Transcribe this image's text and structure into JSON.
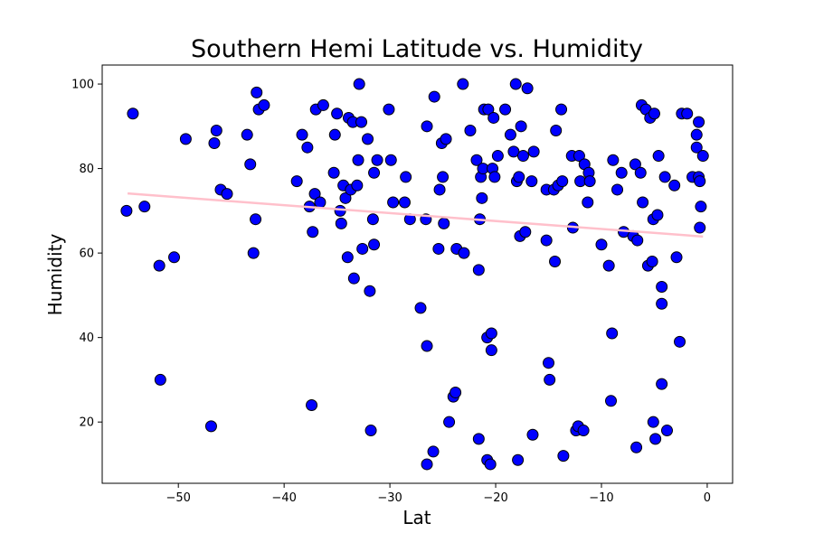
{
  "chart_data": {
    "type": "scatter",
    "title": "Southern Hemi Latitude vs. Humidity",
    "xlabel": "Lat",
    "ylabel": "Humidity",
    "xlim": [
      -57.2,
      2.4
    ],
    "ylim": [
      5.5,
      104.5
    ],
    "xticks": [
      -50,
      -40,
      -30,
      -20,
      -10,
      0
    ],
    "yticks": [
      20,
      40,
      60,
      80,
      100
    ],
    "marker_color": "#0000ff",
    "marker_edge_color": "#000000",
    "regression_color": "#ffc0cb",
    "regression": {
      "x": [
        -54.8,
        -0.4
      ],
      "y": [
        74.1,
        63.9
      ]
    },
    "points": [
      [
        -54.9,
        70
      ],
      [
        -54.3,
        93
      ],
      [
        -53.2,
        71
      ],
      [
        -51.8,
        57
      ],
      [
        -51.7,
        30
      ],
      [
        -50.4,
        59
      ],
      [
        -49.3,
        87
      ],
      [
        -46.9,
        19
      ],
      [
        -46.6,
        86
      ],
      [
        -46.4,
        89
      ],
      [
        -46.0,
        75
      ],
      [
        -45.4,
        74
      ],
      [
        -43.5,
        88
      ],
      [
        -43.2,
        81
      ],
      [
        -42.9,
        60
      ],
      [
        -42.7,
        68
      ],
      [
        -42.6,
        98
      ],
      [
        -42.4,
        94
      ],
      [
        -41.9,
        95
      ],
      [
        -38.8,
        77
      ],
      [
        -38.3,
        88
      ],
      [
        -37.8,
        85
      ],
      [
        -37.6,
        71
      ],
      [
        -37.4,
        24
      ],
      [
        -37.3,
        65
      ],
      [
        -37.1,
        74
      ],
      [
        -37.0,
        94
      ],
      [
        -36.6,
        72
      ],
      [
        -36.3,
        95
      ],
      [
        -35.3,
        79
      ],
      [
        -35.2,
        88
      ],
      [
        -35.0,
        93
      ],
      [
        -34.7,
        70
      ],
      [
        -34.6,
        67
      ],
      [
        -34.4,
        76
      ],
      [
        -34.2,
        73
      ],
      [
        -34.0,
        59
      ],
      [
        -33.9,
        92
      ],
      [
        -33.7,
        75
      ],
      [
        -33.5,
        91
      ],
      [
        -33.4,
        54
      ],
      [
        -33.1,
        76
      ],
      [
        -33.0,
        82
      ],
      [
        -32.9,
        100
      ],
      [
        -32.7,
        91
      ],
      [
        -32.6,
        61
      ],
      [
        -32.1,
        87
      ],
      [
        -31.9,
        51
      ],
      [
        -31.8,
        18
      ],
      [
        -31.6,
        68
      ],
      [
        -31.5,
        62
      ],
      [
        -31.5,
        79
      ],
      [
        -31.2,
        82
      ],
      [
        -30.1,
        94
      ],
      [
        -29.9,
        82
      ],
      [
        -29.7,
        72
      ],
      [
        -28.6,
        72
      ],
      [
        -28.5,
        78
      ],
      [
        -28.1,
        68
      ],
      [
        -27.1,
        47
      ],
      [
        -26.6,
        68
      ],
      [
        -26.5,
        38
      ],
      [
        -26.5,
        90
      ],
      [
        -26.5,
        10
      ],
      [
        -25.9,
        13
      ],
      [
        -25.8,
        97
      ],
      [
        -25.4,
        61
      ],
      [
        -25.3,
        75
      ],
      [
        -25.1,
        86
      ],
      [
        -25.0,
        78
      ],
      [
        -24.9,
        67
      ],
      [
        -24.7,
        87
      ],
      [
        -24.4,
        20
      ],
      [
        -24.0,
        26
      ],
      [
        -23.8,
        27
      ],
      [
        -23.7,
        61
      ],
      [
        -23.1,
        100
      ],
      [
        -23.0,
        60
      ],
      [
        -22.4,
        89
      ],
      [
        -21.8,
        82
      ],
      [
        -21.6,
        16
      ],
      [
        -21.6,
        56
      ],
      [
        -21.5,
        68
      ],
      [
        -21.4,
        78
      ],
      [
        -21.3,
        73
      ],
      [
        -21.2,
        80
      ],
      [
        -21.1,
        94
      ],
      [
        -20.8,
        11
      ],
      [
        -20.8,
        40
      ],
      [
        -20.7,
        94
      ],
      [
        -20.5,
        10
      ],
      [
        -20.4,
        37
      ],
      [
        -20.4,
        41
      ],
      [
        -20.3,
        80
      ],
      [
        -20.2,
        92
      ],
      [
        -20.1,
        78
      ],
      [
        -19.8,
        83
      ],
      [
        -19.1,
        94
      ],
      [
        -18.6,
        88
      ],
      [
        -18.3,
        84
      ],
      [
        -18.1,
        100
      ],
      [
        -18.0,
        77
      ],
      [
        -17.9,
        11
      ],
      [
        -17.8,
        78
      ],
      [
        -17.7,
        64
      ],
      [
        -17.6,
        90
      ],
      [
        -17.4,
        83
      ],
      [
        -17.2,
        65
      ],
      [
        -17.0,
        99
      ],
      [
        -16.6,
        77
      ],
      [
        -16.5,
        17
      ],
      [
        -16.4,
        84
      ],
      [
        -15.2,
        63
      ],
      [
        -15.2,
        75
      ],
      [
        -15.0,
        34
      ],
      [
        -14.9,
        30
      ],
      [
        -14.5,
        75
      ],
      [
        -14.4,
        58
      ],
      [
        -14.3,
        89
      ],
      [
        -14.1,
        76
      ],
      [
        -13.8,
        94
      ],
      [
        -13.7,
        77
      ],
      [
        -13.6,
        12
      ],
      [
        -12.8,
        83
      ],
      [
        -12.7,
        66
      ],
      [
        -12.4,
        18
      ],
      [
        -12.2,
        19
      ],
      [
        -12.1,
        83
      ],
      [
        -12.0,
        77
      ],
      [
        -11.7,
        18
      ],
      [
        -11.6,
        81
      ],
      [
        -11.3,
        72
      ],
      [
        -11.2,
        79
      ],
      [
        -11.1,
        77
      ],
      [
        -10.0,
        62
      ],
      [
        -9.3,
        57
      ],
      [
        -9.1,
        25
      ],
      [
        -9.0,
        41
      ],
      [
        -8.9,
        82
      ],
      [
        -8.5,
        75
      ],
      [
        -8.1,
        79
      ],
      [
        -7.9,
        65
      ],
      [
        -7.0,
        64
      ],
      [
        -6.8,
        81
      ],
      [
        -6.7,
        14
      ],
      [
        -6.6,
        63
      ],
      [
        -6.3,
        79
      ],
      [
        -6.2,
        95
      ],
      [
        -6.1,
        72
      ],
      [
        -5.8,
        94
      ],
      [
        -5.6,
        57
      ],
      [
        -5.4,
        92
      ],
      [
        -5.2,
        58
      ],
      [
        -5.1,
        68
      ],
      [
        -5.1,
        20
      ],
      [
        -5.0,
        93
      ],
      [
        -4.9,
        16
      ],
      [
        -4.7,
        69
      ],
      [
        -4.6,
        83
      ],
      [
        -4.3,
        52
      ],
      [
        -4.3,
        48
      ],
      [
        -4.3,
        29
      ],
      [
        -4.0,
        78
      ],
      [
        -3.8,
        18
      ],
      [
        -3.1,
        76
      ],
      [
        -2.9,
        59
      ],
      [
        -2.6,
        39
      ],
      [
        -2.4,
        93
      ],
      [
        -1.9,
        93
      ],
      [
        -1.4,
        78
      ],
      [
        -1.0,
        88
      ],
      [
        -1.0,
        85
      ],
      [
        -0.8,
        78
      ],
      [
        -0.8,
        91
      ],
      [
        -0.7,
        77
      ],
      [
        -0.6,
        71
      ],
      [
        -0.7,
        66
      ],
      [
        -0.4,
        83
      ]
    ]
  }
}
